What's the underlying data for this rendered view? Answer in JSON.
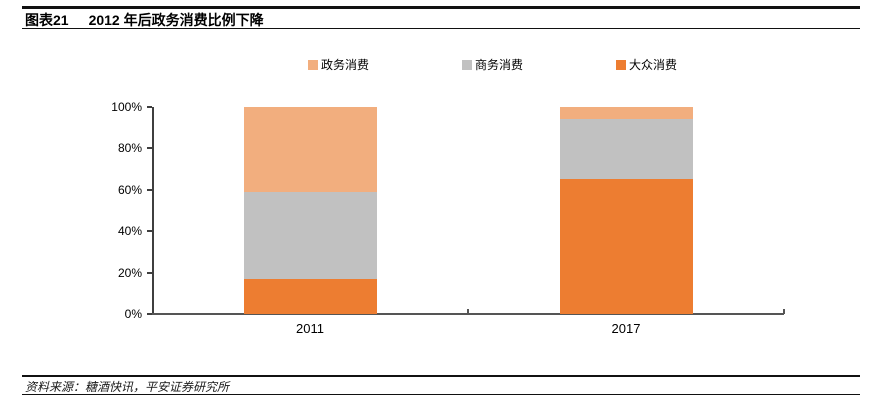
{
  "header": {
    "figure_label": "图表21",
    "title": "2012 年后政务消费比例下降"
  },
  "legend": [
    {
      "label": "政务消费",
      "color": "#F2AE7E"
    },
    {
      "label": "商务消费",
      "color": "#C1C1C1"
    },
    {
      "label": "大众消费",
      "color": "#ED7D31"
    }
  ],
  "chart_data": {
    "type": "bar",
    "stacked": true,
    "title": "2012 年后政务消费比例下降",
    "categories": [
      "2011",
      "2017"
    ],
    "series": [
      {
        "name": "政务消费",
        "color": "#F2AE7E",
        "values": [
          41,
          6
        ]
      },
      {
        "name": "商务消费",
        "color": "#C1C1C1",
        "values": [
          42,
          29
        ]
      },
      {
        "name": "大众消费",
        "color": "#ED7D31",
        "values": [
          17,
          65
        ]
      }
    ],
    "xlabel": "",
    "ylabel": "",
    "ylim": [
      0,
      100
    ],
    "y_ticks": [
      "0%",
      "20%",
      "40%",
      "60%",
      "80%",
      "100%"
    ],
    "grid": false,
    "legend_position": "top"
  },
  "footer": {
    "source": "资料来源：糖酒快讯，平安证券研究所"
  }
}
